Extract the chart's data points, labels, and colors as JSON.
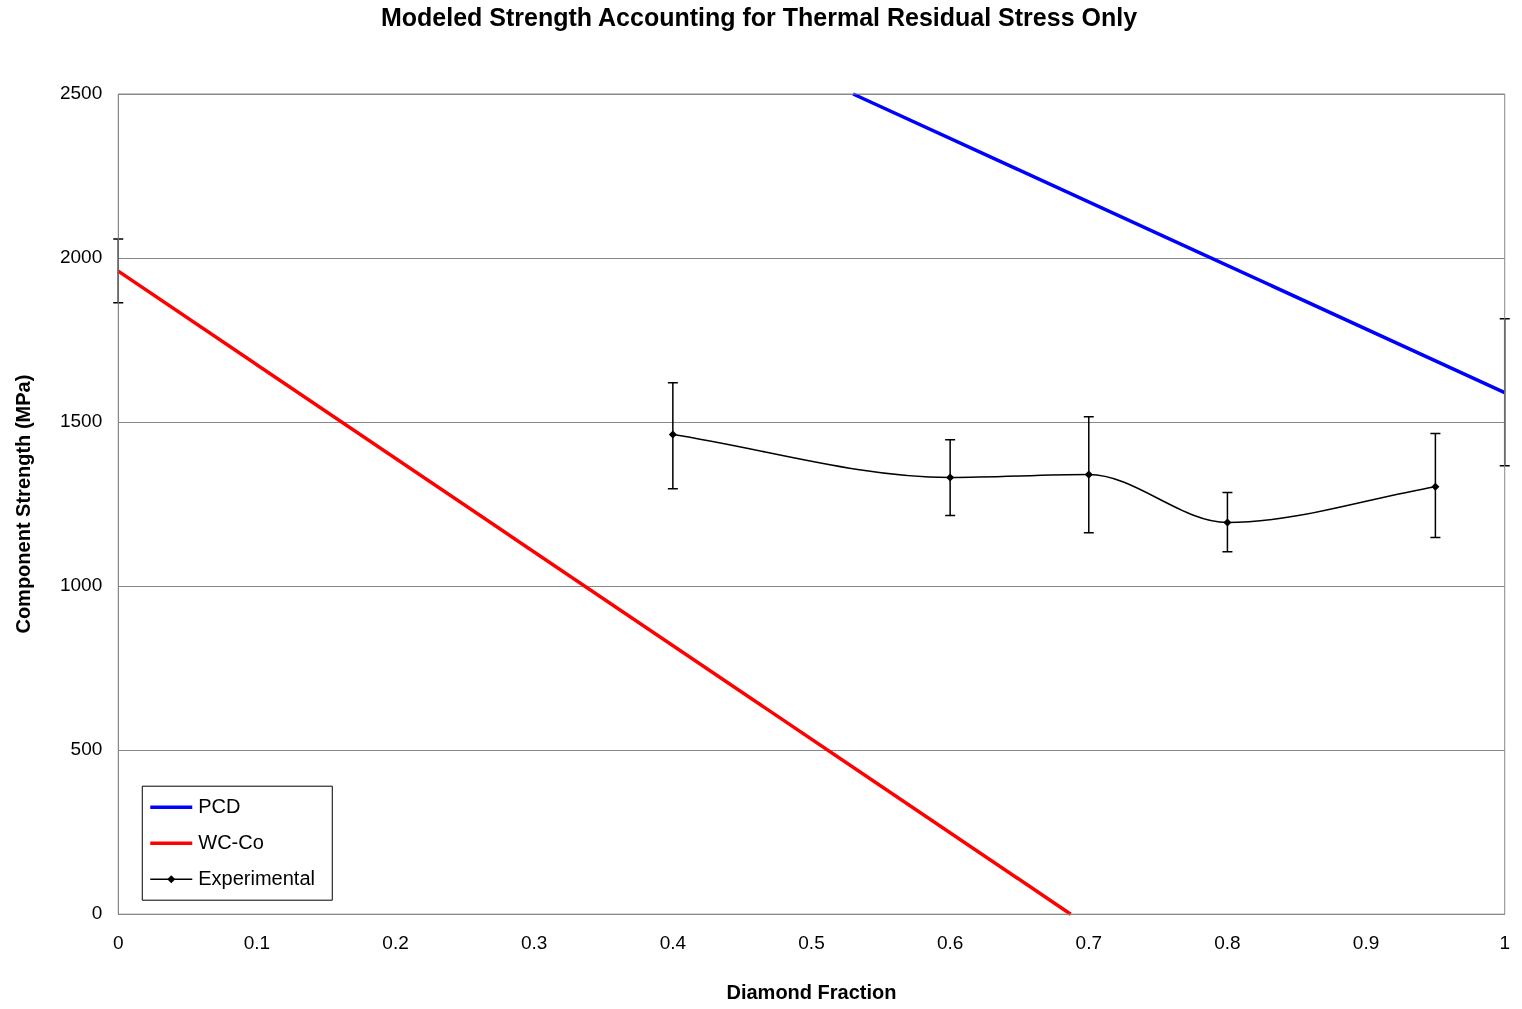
{
  "chart_data": {
    "type": "line",
    "title": "Modeled Strength Accounting for Thermal Residual Stress Only",
    "xlabel": "Diamond Fraction",
    "ylabel": "Component Strength (MPa)",
    "series": [
      {
        "name": "PCD",
        "color": "#0000ff",
        "x": [
          0.53,
          1
        ],
        "values": [
          2500,
          1590
        ],
        "errors": [
          null,
          [
            1367,
            1815
          ]
        ],
        "marker": "none"
      },
      {
        "name": "WC-Co",
        "color": "#ff0000",
        "x": [
          0,
          0.687
        ],
        "values": [
          1960,
          0
        ],
        "errors": [
          [
            1864,
            2058
          ],
          null
        ],
        "marker": "none"
      },
      {
        "name": "Experimental",
        "color": "#000000",
        "x": [
          0.4,
          0.6,
          0.7,
          0.8,
          0.95
        ],
        "values": [
          1462,
          1331,
          1340,
          1194,
          1303
        ],
        "errors": [
          [
            1297,
            1620
          ],
          [
            1215,
            1446
          ],
          [
            1163,
            1516
          ],
          [
            1105,
            1285
          ],
          [
            1148,
            1465
          ]
        ],
        "marker": "diamond"
      }
    ],
    "xlim": [
      0,
      1
    ],
    "xticks": [
      0,
      0.1,
      0.2,
      0.3,
      0.4,
      0.5,
      0.6,
      0.7,
      0.8,
      0.9,
      1
    ],
    "ylim": [
      0,
      2500
    ],
    "yticks": [
      0,
      500,
      1000,
      1500,
      2000,
      2500
    ],
    "grid": "y",
    "legend": "bottom left",
    "line_style": "solid"
  }
}
